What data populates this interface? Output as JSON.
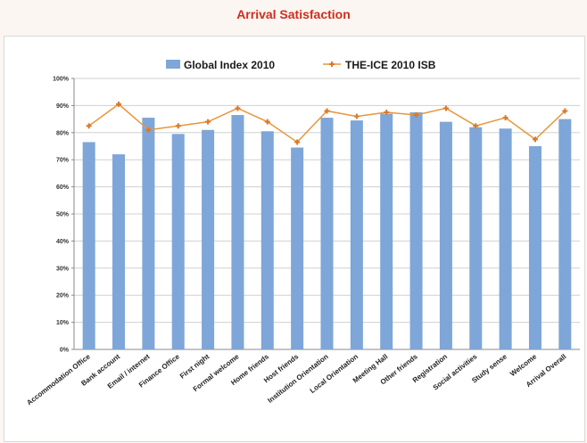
{
  "chart_data": {
    "type": "bar",
    "title": "Arrival Satisfaction",
    "categories": [
      "Accommodation Office",
      "Bank account",
      "Email / internet",
      "Finance Office",
      "First night",
      "Formal welcome",
      "Home friends",
      "Host friends",
      "Institution Orientation",
      "Local Orientation",
      "Meeting Hall",
      "Other friends",
      "Registration",
      "Social activities",
      "Study sense",
      "Welcome",
      "Arrival Overall"
    ],
    "series": [
      {
        "name": "Global Index 2010",
        "type": "bar",
        "color": "#7ea6d8",
        "values": [
          76.5,
          72,
          85.5,
          79.5,
          81,
          86.5,
          80.5,
          74.5,
          85.5,
          84.5,
          87,
          87.5,
          84,
          82,
          81.5,
          75,
          85
        ]
      },
      {
        "name": "THE-ICE 2010 ISB",
        "type": "line",
        "color": "#e8963a",
        "values": [
          82.5,
          90.5,
          81,
          82.5,
          84,
          89,
          84,
          76.5,
          88,
          86,
          87.5,
          86.5,
          89,
          82.5,
          85.5,
          77.5,
          88
        ]
      }
    ],
    "yticks": [
      "0%",
      "10%",
      "20%",
      "30%",
      "40%",
      "50%",
      "60%",
      "70%",
      "80%",
      "90%",
      "100%"
    ],
    "ylim": [
      0,
      100
    ],
    "grid": true,
    "legend": "top"
  }
}
